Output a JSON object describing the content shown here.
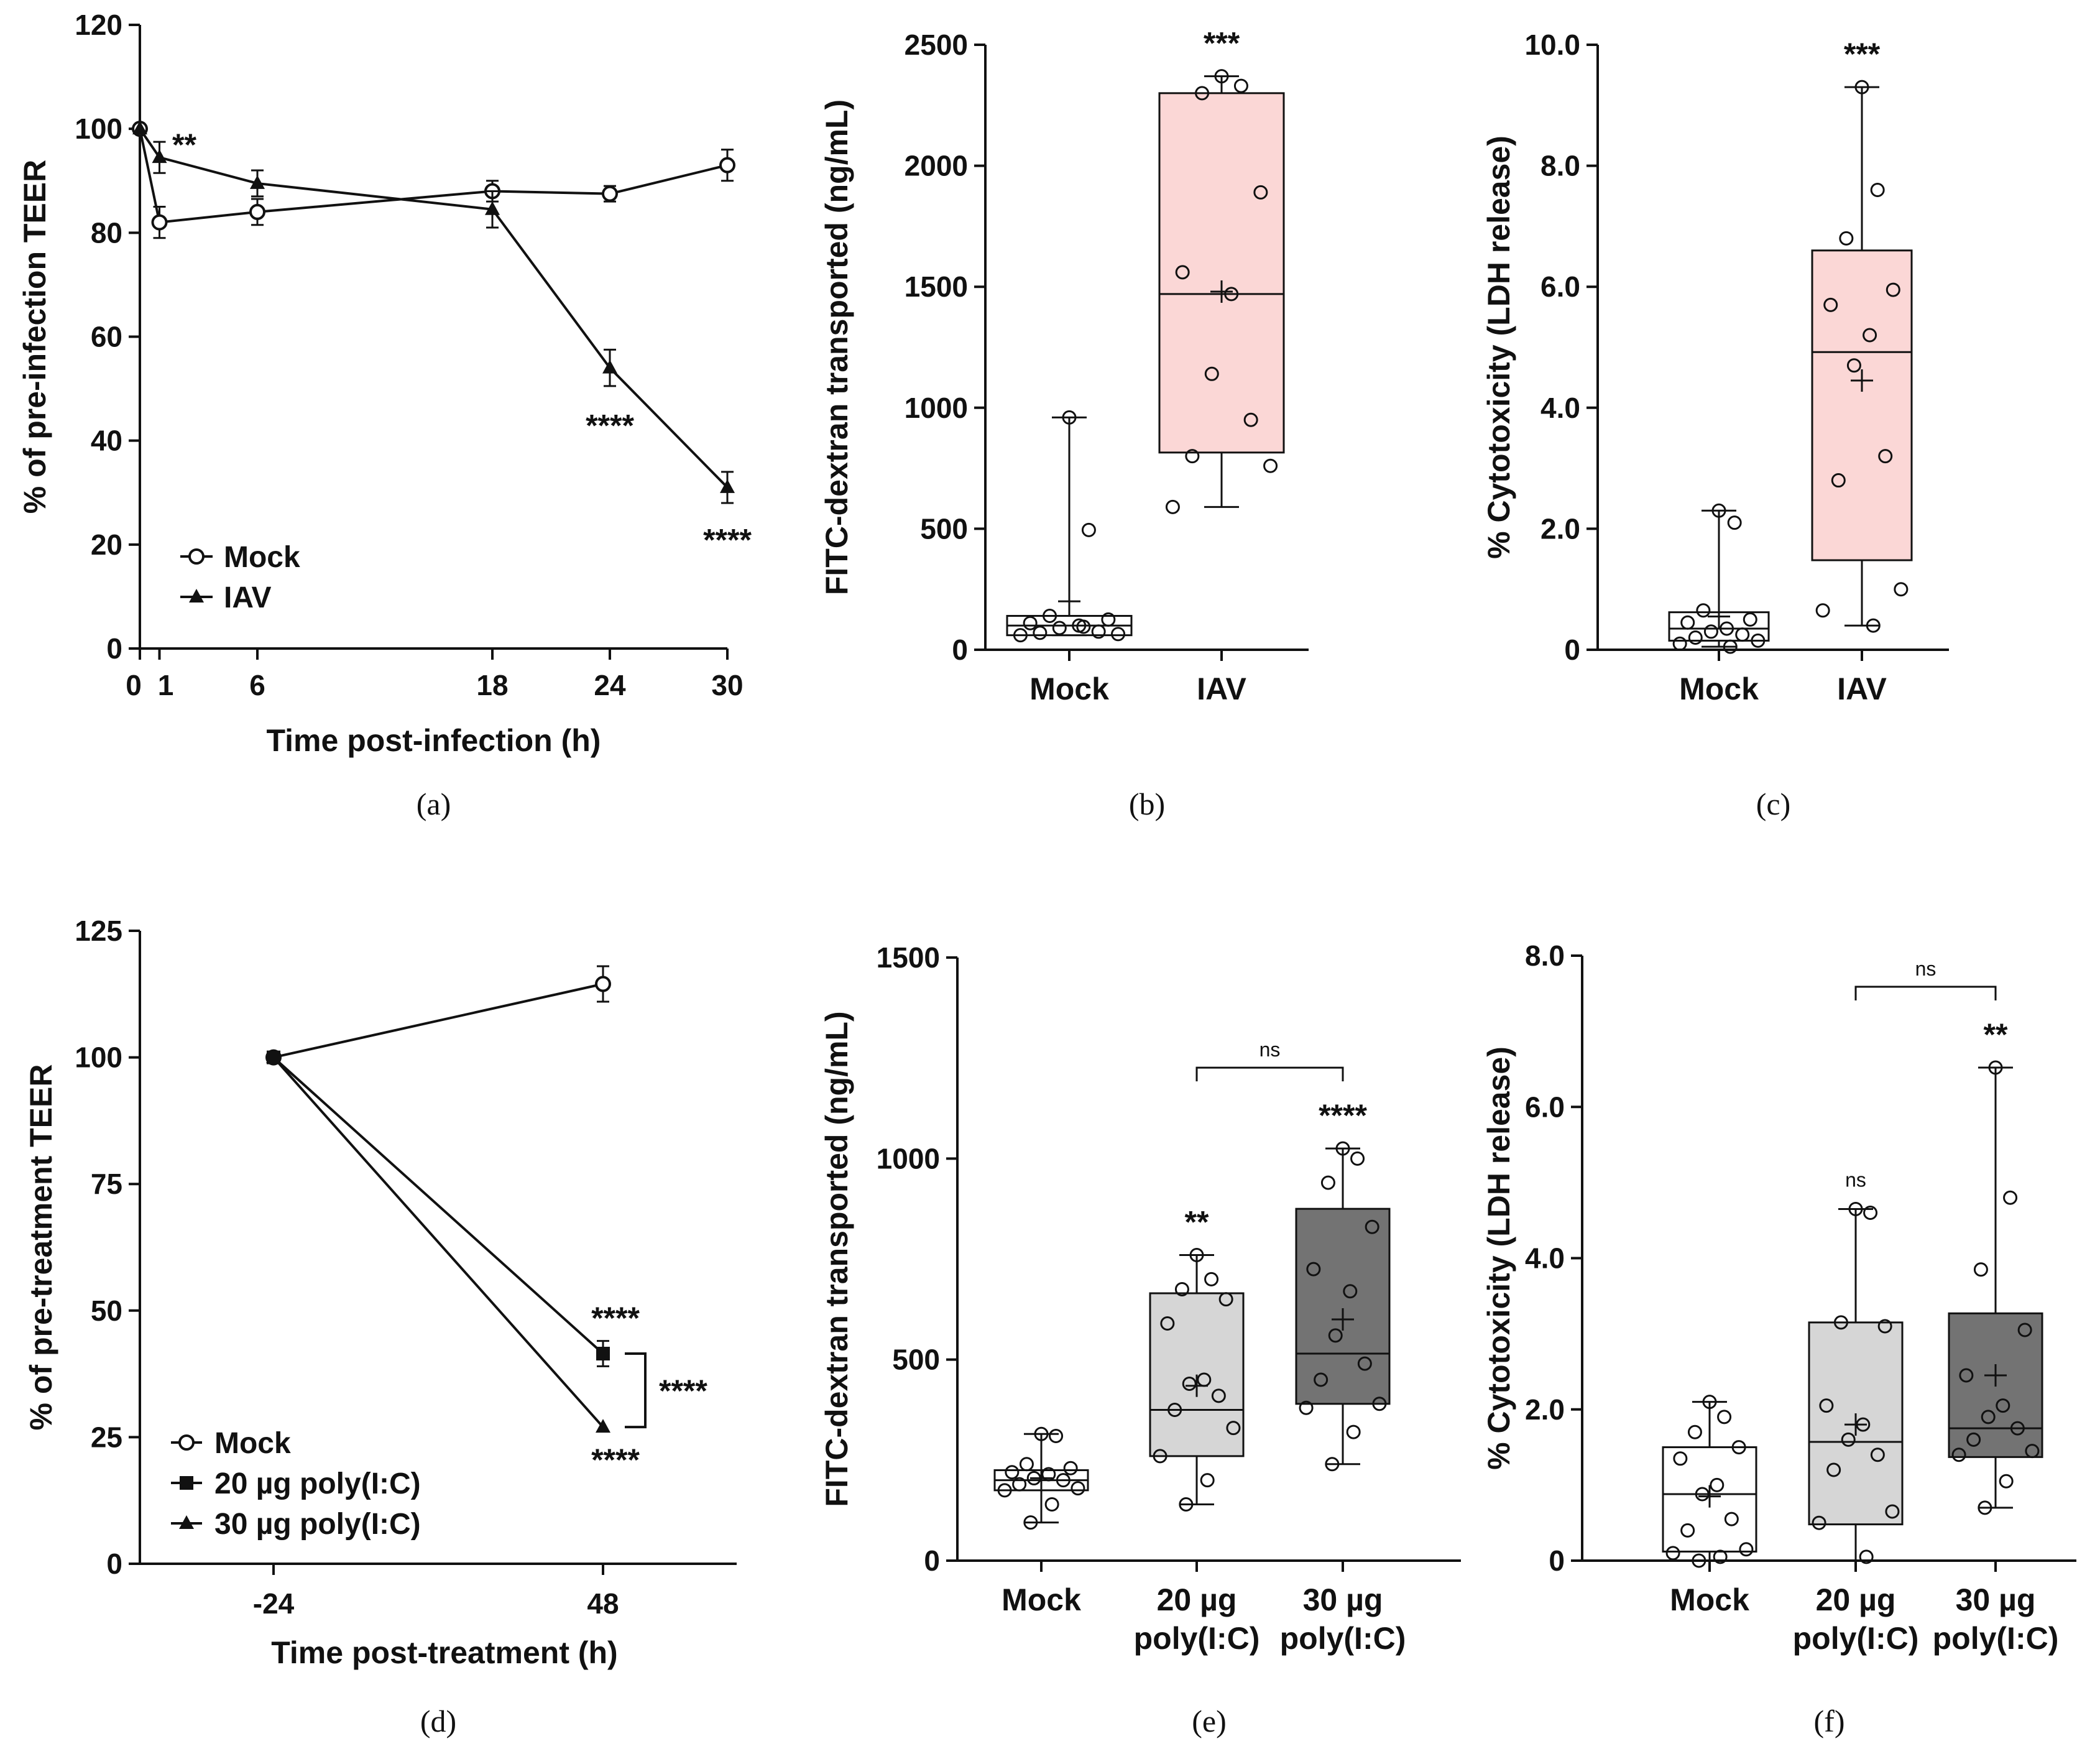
{
  "chart_data": [
    {
      "id": "a",
      "type": "line",
      "caption": "(a)",
      "xlabel": "Time post-infection (h)",
      "ylabel": "% of pre-infection TEER",
      "xlim": [
        0,
        30
      ],
      "ylim": [
        0,
        120
      ],
      "xticks": [
        0,
        1,
        6,
        18,
        24,
        30
      ],
      "yticks": [
        0,
        20,
        40,
        60,
        80,
        100,
        120
      ],
      "series": [
        {
          "name": "Mock",
          "marker": "circle",
          "x": [
            0,
            1,
            6,
            18,
            24,
            30
          ],
          "y": [
            100,
            82,
            84,
            88,
            87.5,
            93
          ],
          "err": [
            0,
            3,
            2.5,
            2,
            1.5,
            3
          ]
        },
        {
          "name": "IAV",
          "marker": "triangle",
          "x": [
            0,
            1,
            6,
            18,
            24,
            30
          ],
          "y": [
            100,
            94.5,
            89.5,
            84.5,
            54,
            31
          ],
          "err": [
            0,
            3,
            2.5,
            3.5,
            3.5,
            3
          ]
        }
      ],
      "annotations": [
        {
          "x": 1,
          "y": 97,
          "text": "**"
        },
        {
          "x": 24,
          "y": 43,
          "text": "****"
        },
        {
          "x": 30,
          "y": 21,
          "text": "****"
        }
      ]
    },
    {
      "id": "b",
      "type": "box",
      "caption": "(b)",
      "ylabel": "FITC-dextran transported (ng/mL)",
      "ylim": [
        0,
        2500
      ],
      "yticks": [
        0,
        500,
        1000,
        1500,
        2000,
        2500
      ],
      "categories": [
        "Mock",
        "IAV"
      ],
      "boxes": [
        {
          "min": 60,
          "q1": 60,
          "median": 100,
          "q3": 140,
          "max": 960,
          "mean": 200,
          "fill": "#ffffff",
          "points": [
            960,
            495,
            140,
            125,
            110,
            100,
            90,
            75,
            70,
            65,
            60,
            95
          ]
        },
        {
          "min": 590,
          "q1": 815,
          "median": 1470,
          "q3": 2300,
          "max": 2370,
          "mean": 1480,
          "fill": "#fbd7d6",
          "points": [
            2370,
            2330,
            2300,
            1890,
            1560,
            1470,
            1140,
            950,
            800,
            760,
            590
          ]
        }
      ],
      "annotations": [
        {
          "category": "IAV",
          "text": "***"
        }
      ]
    },
    {
      "id": "c",
      "type": "box",
      "caption": "(c)",
      "ylabel": "% Cytotoxicity (LDH release)",
      "ylim": [
        0,
        10
      ],
      "yticks": [
        "0",
        "2.0",
        "4.0",
        "6.0",
        "8.0",
        "10.0"
      ],
      "categories": [
        "Mock",
        "IAV"
      ],
      "boxes": [
        {
          "min": 0.05,
          "q1": 0.15,
          "median": 0.35,
          "q3": 0.62,
          "max": 2.3,
          "mean": 0.55,
          "fill": "#ffffff",
          "points": [
            2.3,
            2.1,
            0.65,
            0.5,
            0.45,
            0.35,
            0.3,
            0.25,
            0.2,
            0.15,
            0.1,
            0.05
          ]
        },
        {
          "min": 0.4,
          "q1": 1.48,
          "median": 4.92,
          "q3": 6.6,
          "max": 9.3,
          "mean": 4.45,
          "fill": "#fbd7d6",
          "points": [
            9.3,
            7.6,
            6.8,
            5.95,
            5.7,
            5.2,
            4.7,
            3.2,
            2.8,
            1.0,
            0.65,
            0.4
          ]
        }
      ],
      "annotations": [
        {
          "category": "IAV",
          "text": "***"
        }
      ]
    },
    {
      "id": "d",
      "type": "line",
      "caption": "(d)",
      "xlabel": "Time post-treatment (h)",
      "ylabel": "% of pre-treatment TEER",
      "ylim": [
        0,
        125
      ],
      "xticks": [
        "-24",
        "48"
      ],
      "yticks": [
        0,
        25,
        50,
        75,
        100,
        125
      ],
      "series": [
        {
          "name": "Mock",
          "marker": "circle",
          "x": [
            "-24",
            "48"
          ],
          "y": [
            100,
            114.5
          ],
          "err": [
            0,
            3.5
          ]
        },
        {
          "name": "20 µg poly(I:C)",
          "marker": "square",
          "x": [
            "-24",
            "48"
          ],
          "y": [
            100,
            41.5
          ],
          "err": [
            0,
            2.5
          ]
        },
        {
          "name": "30 µg poly(I:C)",
          "marker": "triangle",
          "x": [
            "-24",
            "48"
          ],
          "y": [
            100,
            27
          ],
          "err": [
            0,
            0
          ]
        }
      ],
      "annotations": [
        {
          "text": "****",
          "at": "20 µg poly(I:C)"
        },
        {
          "text": "****",
          "at": "30 µg poly(I:C)"
        },
        {
          "text": "****",
          "at": "bracket"
        }
      ]
    },
    {
      "id": "e",
      "type": "box",
      "caption": "(e)",
      "ylabel": "FITC-dextran transported (ng/mL)",
      "ylim": [
        0,
        1500
      ],
      "yticks": [
        0,
        500,
        1000,
        1500
      ],
      "categories": [
        "Mock",
        "20 µg poly(I:C)",
        "30 µg poly(I:C)"
      ],
      "category_lines": [
        [
          "Mock"
        ],
        [
          "20 µg",
          "poly(I:C)"
        ],
        [
          "30 µg",
          "poly(I:C)"
        ]
      ],
      "boxes": [
        {
          "min": 95,
          "q1": 175,
          "median": 200,
          "q3": 225,
          "max": 315,
          "mean": 205,
          "fill": "#ffffff",
          "points": [
            315,
            310,
            240,
            230,
            220,
            215,
            205,
            200,
            190,
            180,
            175,
            140,
            95
          ]
        },
        {
          "min": 140,
          "q1": 260,
          "median": 375,
          "q3": 665,
          "max": 760,
          "mean": 435,
          "fill": "#d6d6d6",
          "points": [
            760,
            700,
            675,
            650,
            590,
            450,
            440,
            410,
            375,
            330,
            260,
            200,
            140
          ]
        },
        {
          "min": 240,
          "q1": 390,
          "median": 515,
          "q3": 875,
          "max": 1025,
          "mean": 600,
          "fill": "#737373",
          "points": [
            1025,
            1000,
            940,
            830,
            725,
            670,
            560,
            490,
            450,
            390,
            380,
            320,
            240
          ]
        }
      ],
      "annotations": [
        {
          "category": "20 µg poly(I:C)",
          "text": "**"
        },
        {
          "category": "30 µg poly(I:C)",
          "text": "****"
        },
        {
          "between": [
            "20 µg poly(I:C)",
            "30 µg poly(I:C)"
          ],
          "text": "ns"
        }
      ]
    },
    {
      "id": "f",
      "type": "box",
      "caption": "(f)",
      "ylabel": "% Cytotoxicity (LDH release)",
      "ylim": [
        0,
        8
      ],
      "yticks": [
        "0",
        "2.0",
        "4.0",
        "6.0",
        "8.0"
      ],
      "categories": [
        "Mock",
        "20 µg poly(I:C)",
        "30 µg poly(I:C)"
      ],
      "category_lines": [
        [
          "Mock"
        ],
        [
          "20 µg",
          "poly(I:C)"
        ],
        [
          "30 µg",
          "poly(I:C)"
        ]
      ],
      "boxes": [
        {
          "min": 0,
          "q1": 0.12,
          "median": 0.88,
          "q3": 1.5,
          "max": 2.1,
          "mean": 0.85,
          "fill": "#ffffff",
          "points": [
            2.1,
            1.9,
            1.7,
            1.5,
            1.35,
            1.0,
            0.88,
            0.55,
            0.4,
            0.15,
            0.1,
            0.05,
            0
          ]
        },
        {
          "min": 0,
          "q1": 0.48,
          "median": 1.57,
          "q3": 3.15,
          "max": 4.65,
          "mean": 1.8,
          "fill": "#d6d6d6",
          "points": [
            4.65,
            4.6,
            3.15,
            3.1,
            2.05,
            1.8,
            1.6,
            1.4,
            1.2,
            0.65,
            0.5,
            0.05
          ]
        },
        {
          "min": 0.7,
          "q1": 1.37,
          "median": 1.75,
          "q3": 3.27,
          "max": 6.52,
          "mean": 2.45,
          "fill": "#737373",
          "points": [
            6.52,
            4.8,
            3.85,
            3.05,
            2.45,
            2.05,
            1.9,
            1.75,
            1.6,
            1.45,
            1.4,
            1.05,
            0.7
          ]
        }
      ],
      "annotations": [
        {
          "category": "20 µg poly(I:C)",
          "text": "ns"
        },
        {
          "category": "30 µg poly(I:C)",
          "text": "**"
        },
        {
          "between": [
            "20 µg poly(I:C)",
            "30 µg poly(I:C)"
          ],
          "text": "ns"
        }
      ]
    }
  ]
}
